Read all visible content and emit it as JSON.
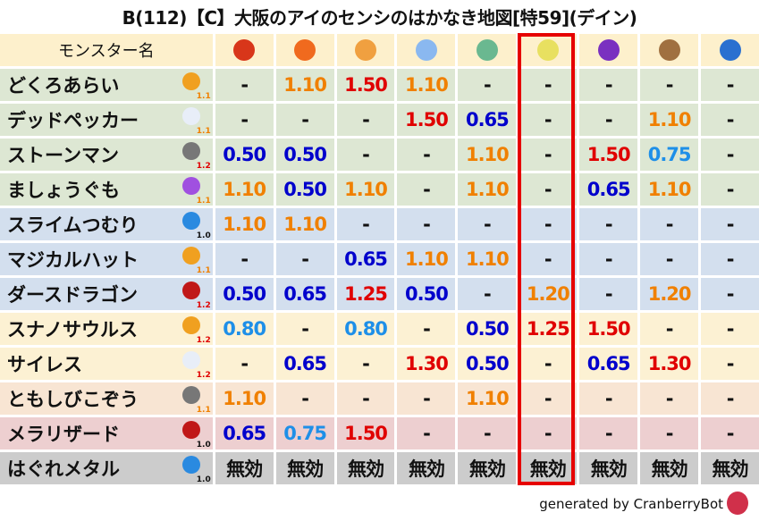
{
  "title": "B(112)【C】大阪のアイのセンシのはかなき地図[特59](デイン)",
  "header": {
    "name_label": "モンスター名",
    "elements": [
      {
        "icon": "fire-ball-icon",
        "color": "#d8361a"
      },
      {
        "icon": "flame-icon",
        "color": "#f06a1e"
      },
      {
        "icon": "explosion-icon",
        "color": "#f0a040"
      },
      {
        "icon": "ice-flower-icon",
        "color": "#8ab8f0"
      },
      {
        "icon": "tornado-icon",
        "color": "#6ab890"
      },
      {
        "icon": "lightning-star-icon",
        "color": "#e8e060"
      },
      {
        "icon": "darkness-swirl-icon",
        "color": "#7a30c0"
      },
      {
        "icon": "earth-mountain-icon",
        "color": "#a07040"
      },
      {
        "icon": "water-wave-icon",
        "color": "#2a70d0"
      }
    ]
  },
  "highlighted_column": 5,
  "colors": {
    "orange": "#f08000",
    "red": "#e00000",
    "blue": "#0000cc",
    "lightblue": "#1e8fe8"
  },
  "rows": [
    {
      "name": "どくろあらい",
      "type_icon": "paw-icon",
      "weight": "1.1",
      "weight_color": "#f08000",
      "bg": "#dde7d3",
      "values": [
        "-",
        "1.10",
        "1.50",
        "1.10",
        "-",
        "-",
        "-",
        "-",
        "-"
      ]
    },
    {
      "name": "デッドペッカー",
      "type_icon": "wing-icon",
      "weight": "1.1",
      "weight_color": "#f08000",
      "bg": "#dde7d3",
      "values": [
        "-",
        "-",
        "-",
        "1.50",
        "0.65",
        "-",
        "-",
        "1.10",
        "-"
      ]
    },
    {
      "name": "ストーンマン",
      "type_icon": "brick-icon",
      "weight": "1.2",
      "weight_color": "#e00000",
      "bg": "#dde7d3",
      "values": [
        "0.50",
        "0.50",
        "-",
        "-",
        "1.10",
        "-",
        "1.50",
        "0.75",
        "-"
      ]
    },
    {
      "name": "ましょうぐも",
      "type_icon": "cloud-monster-icon",
      "weight": "1.1",
      "weight_color": "#f08000",
      "bg": "#dde7d3",
      "values": [
        "1.10",
        "0.50",
        "1.10",
        "-",
        "1.10",
        "-",
        "0.65",
        "1.10",
        "-"
      ]
    },
    {
      "name": "スライムつむり",
      "type_icon": "slime-icon",
      "weight": "1.0",
      "weight_color": "#111111",
      "bg": "#d3dfee",
      "values": [
        "1.10",
        "1.10",
        "-",
        "-",
        "-",
        "-",
        "-",
        "-",
        "-"
      ]
    },
    {
      "name": "マジカルハット",
      "type_icon": "paw-icon",
      "weight": "1.1",
      "weight_color": "#f08000",
      "bg": "#d3dfee",
      "values": [
        "-",
        "-",
        "0.65",
        "1.10",
        "1.10",
        "-",
        "-",
        "-",
        "-"
      ]
    },
    {
      "name": "ダースドラゴン",
      "type_icon": "dragon-icon",
      "weight": "1.2",
      "weight_color": "#e00000",
      "bg": "#d3dfee",
      "values": [
        "0.50",
        "0.65",
        "1.25",
        "0.50",
        "-",
        "1.20",
        "-",
        "1.20",
        "-"
      ]
    },
    {
      "name": "スナノサウルス",
      "type_icon": "paw-icon",
      "weight": "1.2",
      "weight_color": "#e00000",
      "bg": "#fcf1d3",
      "values": [
        "0.80",
        "-",
        "0.80",
        "-",
        "0.50",
        "1.25",
        "1.50",
        "-",
        "-"
      ]
    },
    {
      "name": "サイレス",
      "type_icon": "wing-icon",
      "weight": "1.2",
      "weight_color": "#e00000",
      "bg": "#fcf1d3",
      "values": [
        "-",
        "0.65",
        "-",
        "1.30",
        "0.50",
        "-",
        "0.65",
        "1.30",
        "-"
      ]
    },
    {
      "name": "ともしびこぞう",
      "type_icon": "brick-icon",
      "weight": "1.1",
      "weight_color": "#f08000",
      "bg": "#f8e5d3",
      "values": [
        "1.10",
        "-",
        "-",
        "-",
        "1.10",
        "-",
        "-",
        "-",
        "-"
      ]
    },
    {
      "name": "メラリザード",
      "type_icon": "dragon-icon",
      "weight": "1.0",
      "weight_color": "#111111",
      "bg": "#edcfd0",
      "values": [
        "0.65",
        "0.75",
        "1.50",
        "-",
        "-",
        "-",
        "-",
        "-",
        "-"
      ]
    },
    {
      "name": "はぐれメタル",
      "type_icon": "slime-icon",
      "weight": "1.0",
      "weight_color": "#111111",
      "bg": "#cccccc",
      "values": [
        "無効",
        "無効",
        "無効",
        "無効",
        "無効",
        "無効",
        "無効",
        "無効",
        "無効"
      ]
    }
  ],
  "footer": "generated by CranberryBot"
}
